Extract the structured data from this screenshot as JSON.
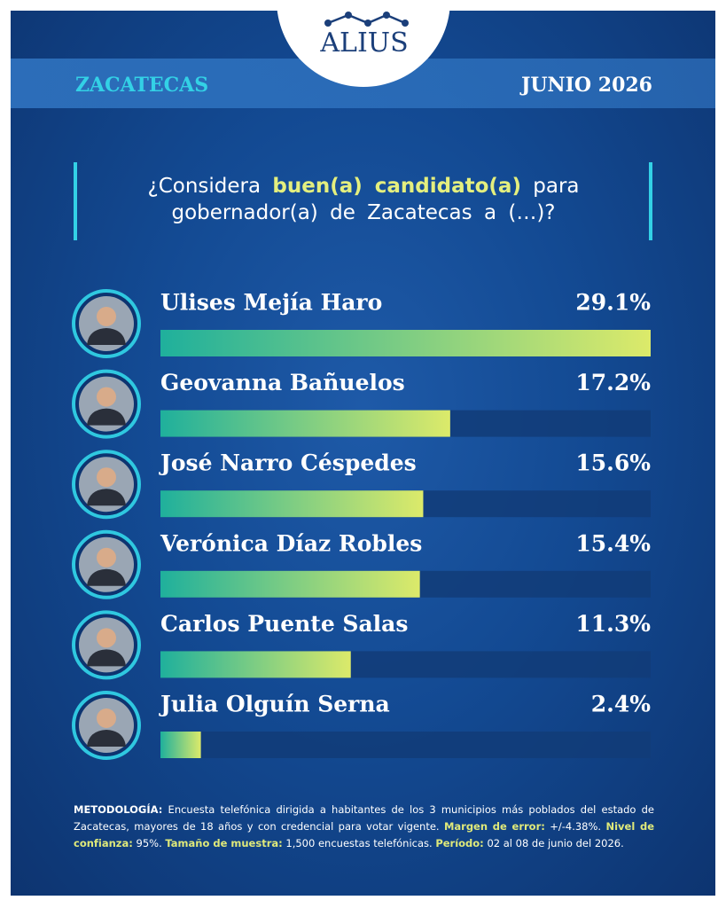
{
  "header": {
    "logo": "ALIUS",
    "region": "ZACATECAS",
    "date": "JUNIO 2026"
  },
  "question": {
    "parts": [
      "¿Considera",
      "buen(a) candidato(a)",
      "para gobernador(a) de Zacatecas a (…)?"
    ]
  },
  "chart_data": {
    "type": "bar",
    "orientation": "horizontal",
    "categories": [
      "Ulises Mejía Haro",
      "Geovanna Bañuelos",
      "José Narro Céspedes",
      "Verónica Díaz Robles",
      "Carlos Puente Salas",
      "Julia Olguín Serna"
    ],
    "values": [
      29.1,
      17.2,
      15.6,
      15.4,
      11.3,
      2.4
    ],
    "value_labels": [
      "29.1%",
      "17.2%",
      "15.6%",
      "15.4%",
      "11.3%",
      "2.4%"
    ],
    "gradient": [
      "#1fb09c",
      "#dcea6a"
    ],
    "track_color": "#123c78"
  },
  "methodology": [
    {
      "label": "METODOLOGÍA:",
      "text": "Encuesta telefónica dirigida a habitantes de los 3 municipios más poblados del estado de Zacatecas, mayores de 18 años y con credencial para votar vigente."
    },
    {
      "label": "Margen de error:",
      "text": "+/-4.38%."
    },
    {
      "label": "Nivel de confianza:",
      "text": "95%."
    },
    {
      "label": "Tamaño de muestra:",
      "text": "1,500 encuestas telefónicas."
    },
    {
      "label": "Período:",
      "text": "02 al 08 de junio del 2026."
    }
  ]
}
